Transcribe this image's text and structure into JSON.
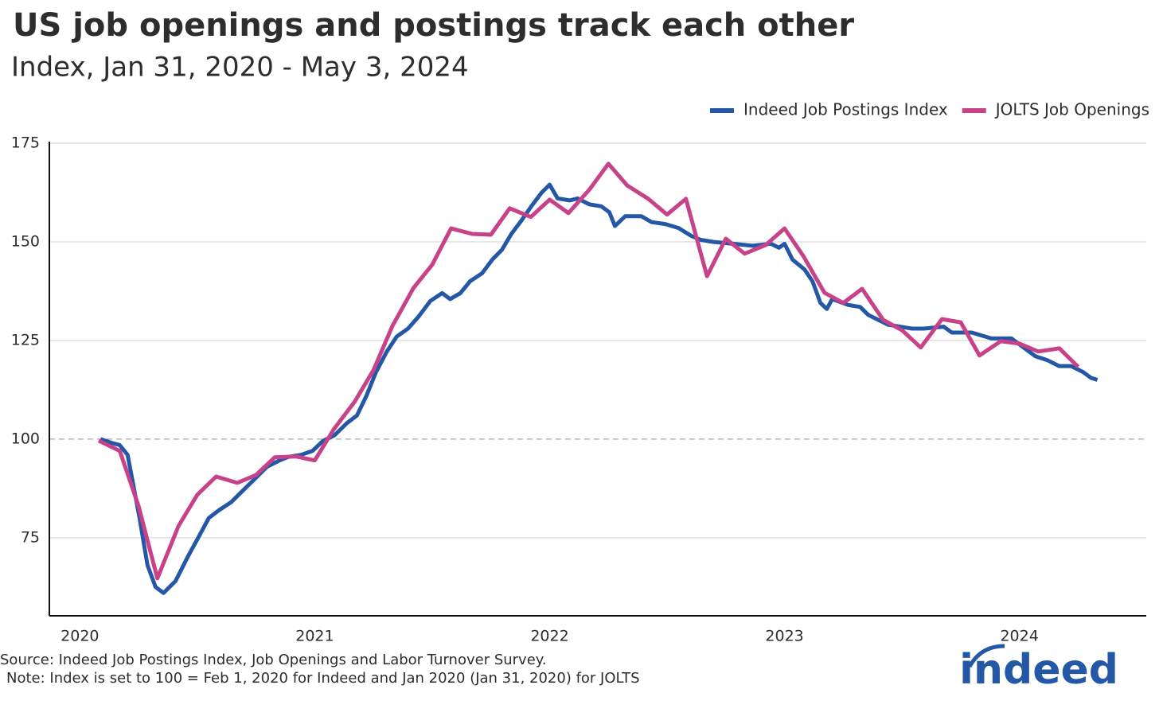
{
  "chart_data": {
    "type": "line",
    "title": "US job openings and postings track each other",
    "subtitle": "Index, Jan 31, 2020 - May 3, 2024",
    "source": "Source: Indeed Job Postings Index, Job Openings and Labor Turnover Survey.",
    "note": "Note: Index is set to 100 = Feb 1, 2020 for Indeed and Jan 2020 (Jan 31, 2020) for JOLTS",
    "logo": "indeed",
    "xlim": [
      2019.87,
      2024.54
    ],
    "xticks": [
      2020,
      2021,
      2022,
      2023,
      2024
    ],
    "ylim": [
      55,
      175
    ],
    "yticks": [
      75,
      100,
      125,
      150,
      175
    ],
    "reference_line": 100,
    "grid": true,
    "legend": "top-right",
    "series": [
      {
        "name": "Indeed Job Postings Index",
        "color": "#2557a7",
        "x": [
          2020.088,
          2020.136,
          2020.169,
          2020.203,
          2020.254,
          2020.288,
          2020.322,
          2020.356,
          2020.407,
          2020.458,
          2020.508,
          2020.549,
          2020.593,
          2020.644,
          2020.695,
          2020.746,
          2020.797,
          2020.847,
          2020.888,
          2020.942,
          2020.99,
          2021.034,
          2021.085,
          2021.136,
          2021.18,
          2021.22,
          2021.261,
          2021.305,
          2021.349,
          2021.397,
          2021.441,
          2021.492,
          2021.542,
          2021.576,
          2021.62,
          2021.661,
          2021.712,
          2021.756,
          2021.797,
          2021.837,
          2021.881,
          2021.922,
          2021.966,
          2022.0,
          2022.034,
          2022.085,
          2022.119,
          2022.169,
          2022.22,
          2022.254,
          2022.278,
          2022.322,
          2022.39,
          2022.434,
          2022.492,
          2022.549,
          2022.603,
          2022.644,
          2022.695,
          2022.78,
          2022.864,
          2022.942,
          2022.976,
          2023.0,
          2023.034,
          2023.085,
          2023.119,
          2023.153,
          2023.18,
          2023.203,
          2023.271,
          2023.322,
          2023.356,
          2023.441,
          2023.492,
          2023.542,
          2023.593,
          2023.678,
          2023.712,
          2023.797,
          2023.881,
          2023.966,
          2024.0,
          2024.068,
          2024.119,
          2024.169,
          2024.22,
          2024.271,
          2024.305,
          2024.332
        ],
        "values": [
          100,
          99,
          98.5,
          96,
          80,
          68,
          62.5,
          61,
          64,
          70,
          75.5,
          80,
          82,
          84,
          87,
          90,
          93,
          94.5,
          95.5,
          96,
          97,
          99.5,
          101,
          104,
          106,
          111,
          117,
          122,
          126,
          128,
          131,
          135,
          137,
          135.5,
          137,
          140,
          142,
          145.5,
          148,
          152,
          155.5,
          159,
          162.5,
          164.5,
          161,
          160.5,
          161,
          159.5,
          159,
          157.5,
          154,
          156.5,
          156.5,
          155,
          154.5,
          153.5,
          151.5,
          150.5,
          150,
          149.5,
          149,
          149.5,
          148.5,
          149.5,
          145.5,
          143,
          140,
          134.5,
          133,
          135.5,
          134,
          133.5,
          131.5,
          129,
          128.5,
          128,
          128,
          128.5,
          127,
          127,
          125.5,
          125.5,
          124,
          121,
          120,
          118.5,
          118.5,
          117,
          115.5,
          115
        ]
      },
      {
        "name": "JOLTS Job Openings",
        "color": "#c74289",
        "x": [
          2020.08,
          2020.17,
          2020.25,
          2020.33,
          2020.42,
          2020.5,
          2020.58,
          2020.67,
          2020.75,
          2020.83,
          2020.92,
          2021.0,
          2021.08,
          2021.17,
          2021.25,
          2021.33,
          2021.42,
          2021.5,
          2021.58,
          2021.67,
          2021.75,
          2021.83,
          2021.92,
          2022.0,
          2022.08,
          2022.17,
          2022.25,
          2022.33,
          2022.42,
          2022.5,
          2022.58,
          2022.67,
          2022.75,
          2022.83,
          2022.92,
          2023.0,
          2023.08,
          2023.17,
          2023.25,
          2023.33,
          2023.42,
          2023.5,
          2023.58,
          2023.67,
          2023.75,
          2023.83,
          2023.92,
          2024.0,
          2024.08,
          2024.17,
          2024.25
        ],
        "values": [
          99.6,
          97,
          83,
          64.7,
          78,
          85.9,
          90.5,
          88.9,
          90.9,
          95.4,
          95.6,
          94.6,
          102.4,
          109.5,
          117.5,
          128.6,
          138.3,
          144.2,
          153.4,
          152,
          151.8,
          158.5,
          156.3,
          160.7,
          157.3,
          163.3,
          169.8,
          164.3,
          160.9,
          156.9,
          160.9,
          141.3,
          150.8,
          147,
          149.2,
          153.4,
          146.4,
          137.1,
          134.5,
          138.1,
          130.2,
          127.6,
          123.2,
          130.4,
          129.6,
          121.2,
          124.8,
          124.2,
          122.2,
          123,
          118.3
        ]
      }
    ]
  }
}
